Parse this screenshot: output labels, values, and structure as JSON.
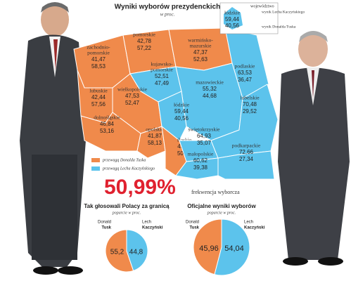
{
  "title": "Wyniki wyborów prezydenckich",
  "subtitle": "w proc.",
  "key": {
    "region": "województwo",
    "k_label": "wynik Lecha Kaczyńskiego",
    "t_label": "wynik Donalda Tuska",
    "example": {
      "name": "łódzkie",
      "k": "59,44",
      "t": "40,56"
    }
  },
  "legend": [
    {
      "label": "przewagą Donalda Tuska",
      "color": "#f08a4b"
    },
    {
      "label": "przewagą Lecha Kaczyńskiego",
      "color": "#5cc3ec"
    }
  ],
  "regions": [
    {
      "name": [
        "zachodnio-",
        "pomorskie"
      ],
      "k": "41,47",
      "t": "58,53",
      "color": "#f08a4b"
    },
    {
      "name": [
        "pomorskie"
      ],
      "k": "42,78",
      "t": "57,22",
      "color": "#f08a4b"
    },
    {
      "name": [
        "warmińsko-",
        "mazurskie"
      ],
      "k": "47,37",
      "t": "52,63",
      "color": "#f08a4b"
    },
    {
      "name": [
        "podlaskie"
      ],
      "k": "63,53",
      "t": "36,47",
      "color": "#5cc3ec"
    },
    {
      "name": [
        "kujawsko-",
        "pomorskie"
      ],
      "k": "52,51",
      "t": "47,49",
      "color": "#5cc3ec"
    },
    {
      "name": [
        "mazowieckie"
      ],
      "k": "55,32",
      "t": "44,68",
      "color": "#5cc3ec"
    },
    {
      "name": [
        "lubuskie"
      ],
      "k": "42,44",
      "t": "57,56",
      "color": "#f08a4b"
    },
    {
      "name": [
        "wielkopolskie"
      ],
      "k": "47,53",
      "t": "52,47",
      "color": "#f08a4b"
    },
    {
      "name": [
        "łódzkie"
      ],
      "k": "59,44",
      "t": "40,56",
      "color": "#5cc3ec"
    },
    {
      "name": [
        "dolnośląskie"
      ],
      "k": "46,84",
      "t": "53,16",
      "color": "#f08a4b"
    },
    {
      "name": [
        "opolskie"
      ],
      "k": "41,87",
      "t": "58,13",
      "color": "#f08a4b"
    },
    {
      "name": [
        "śląskie"
      ],
      "k": "49,11",
      "t": "50,89",
      "color": "#f08a4b"
    },
    {
      "name": [
        "świętokrzyskie"
      ],
      "k": "64,93",
      "t": "35,07",
      "color": "#5cc3ec"
    },
    {
      "name": [
        "lubelskie"
      ],
      "k": "70,48",
      "t": "29,52",
      "color": "#5cc3ec"
    },
    {
      "name": [
        "małopolskie"
      ],
      "k": "60,62",
      "t": "39,38",
      "color": "#5cc3ec"
    },
    {
      "name": [
        "podkarpackie"
      ],
      "k": "72,66",
      "t": "27,34",
      "color": "#5cc3ec"
    }
  ],
  "turnout": {
    "value": "50,99%",
    "label": "frekwencja wyborcza"
  },
  "pies": [
    {
      "title": "Tak głosowali Polacy za granicą",
      "subtitle": "poparcie w proc.",
      "left_name": [
        "Donald",
        "Tusk"
      ],
      "right_name": [
        "Lech",
        "Kaczyński"
      ],
      "values": [
        55.2,
        44.8
      ],
      "value_labels": [
        "55,2",
        "44,8"
      ],
      "colors": [
        "#f08a4b",
        "#5cc3ec"
      ]
    },
    {
      "title": "Oficjalne wyniki wyborów",
      "subtitle": "poparcie w proc.",
      "left_name": [
        "Donald",
        "Tusk"
      ],
      "right_name": [
        "Lech",
        "Kaczyński"
      ],
      "values": [
        45.96,
        54.04
      ],
      "value_labels": [
        "45,96",
        "54,04"
      ],
      "colors": [
        "#f08a4b",
        "#5cc3ec"
      ]
    }
  ]
}
